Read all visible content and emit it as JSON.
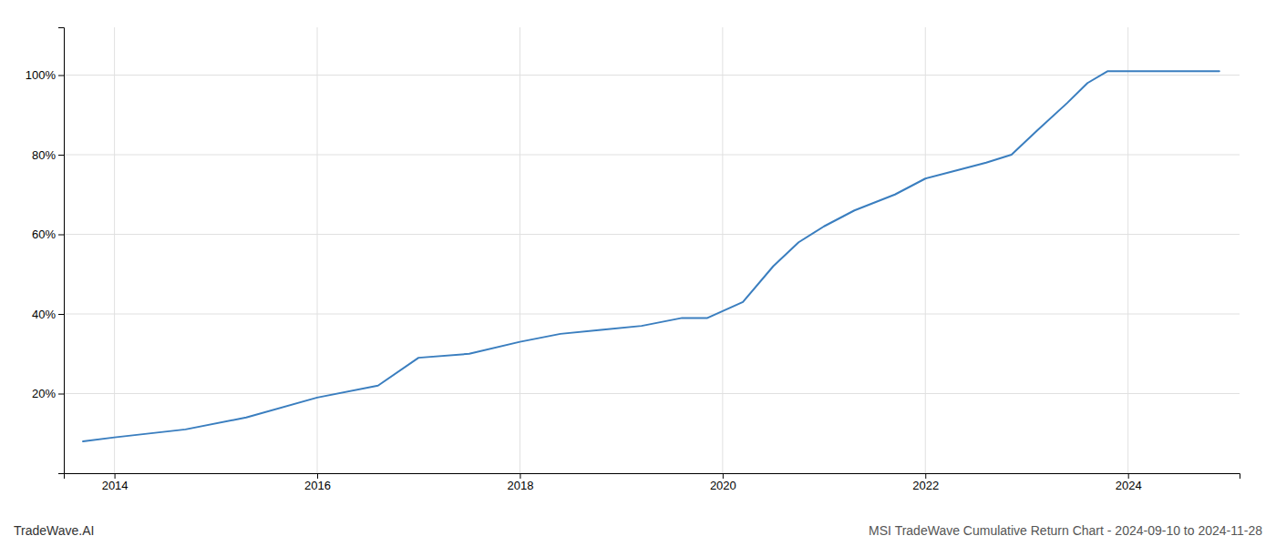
{
  "chart_data": {
    "type": "line",
    "title": "MSI TradeWave Cumulative Return Chart - 2024-09-10 to 2024-11-28",
    "annotations": [
      "TradeWave.AI"
    ],
    "x": [
      2013.69,
      2014.0,
      2014.7,
      2015.3,
      2016.0,
      2016.6,
      2017.0,
      2017.5,
      2018.0,
      2018.4,
      2018.8,
      2019.2,
      2019.6,
      2019.85,
      2020.2,
      2020.5,
      2020.75,
      2021.0,
      2021.3,
      2021.7,
      2022.0,
      2022.3,
      2022.6,
      2022.85,
      2023.1,
      2023.4,
      2023.6,
      2023.8,
      2024.0,
      2024.5,
      2024.9
    ],
    "values": [
      8,
      9,
      11,
      14,
      19,
      22,
      29,
      30,
      33,
      35,
      36,
      37,
      39,
      39,
      43,
      52,
      58,
      62,
      66,
      70,
      74,
      76,
      78,
      80,
      86,
      93,
      98,
      101,
      101,
      101,
      101
    ],
    "color": "#3a7ebf",
    "xlim": [
      2013.5,
      2025.1
    ],
    "ylim": [
      0,
      112
    ],
    "xticks": [
      2014,
      2016,
      2018,
      2020,
      2022,
      2024
    ],
    "yticks": [
      {
        "value": 0,
        "label": null
      },
      {
        "value": 20,
        "label": "20%"
      },
      {
        "value": 40,
        "label": "40%"
      },
      {
        "value": 60,
        "label": "60%"
      },
      {
        "value": 80,
        "label": "80%"
      },
      {
        "value": 100,
        "label": "100%"
      }
    ],
    "grid": true
  }
}
